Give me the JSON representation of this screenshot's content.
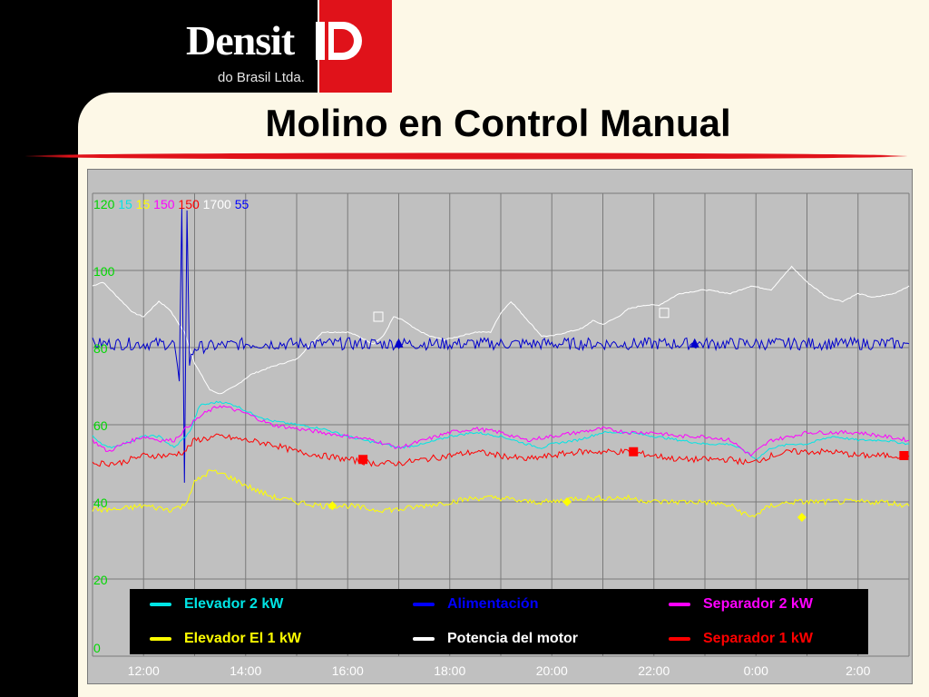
{
  "logo": {
    "wordmark": "Densit",
    "subtitle": "do Brasil Ltda."
  },
  "title": "Molino en Control Manual",
  "colors": {
    "background": "#fdf8e7",
    "accent_red": "#e0121a",
    "plot_bg": "#c0c0c0",
    "grid": "#7a7a7a"
  },
  "chart_data": {
    "type": "line",
    "x_ticks": [
      "12:00",
      "14:00",
      "16:00",
      "18:00",
      "20:00",
      "22:00",
      "0:00",
      "2:00"
    ],
    "y_ticks": [
      0,
      20,
      40,
      60,
      80,
      100
    ],
    "ylim": [
      0,
      120
    ],
    "grid": true,
    "scale_labels": [
      {
        "text": "120",
        "color": "#00d800"
      },
      {
        "text": "15",
        "color": "#00e5e5"
      },
      {
        "text": "15",
        "color": "#ffff00"
      },
      {
        "text": "150",
        "color": "#ff00ff"
      },
      {
        "text": "150",
        "color": "#ff0000"
      },
      {
        "text": "1700",
        "color": "#ffffff"
      },
      {
        "text": "55",
        "color": "#0000ff"
      }
    ],
    "series": [
      {
        "name": "Potencia del motor",
        "color": "#ffffff",
        "points": [
          [
            11.0,
            96
          ],
          [
            11.2,
            97
          ],
          [
            11.5,
            93
          ],
          [
            11.8,
            89
          ],
          [
            12.0,
            88
          ],
          [
            12.3,
            92
          ],
          [
            12.5,
            90
          ],
          [
            12.8,
            84
          ],
          [
            13.0,
            76
          ],
          [
            13.3,
            69
          ],
          [
            13.5,
            68
          ],
          [
            13.8,
            70
          ],
          [
            14.1,
            73
          ],
          [
            14.5,
            75
          ],
          [
            15.0,
            77
          ],
          [
            15.5,
            84
          ],
          [
            16.0,
            84
          ],
          [
            16.2,
            83
          ],
          [
            16.5,
            81
          ],
          [
            16.7,
            83
          ],
          [
            16.9,
            88
          ],
          [
            17.1,
            87
          ],
          [
            17.3,
            85
          ],
          [
            17.6,
            83
          ],
          [
            17.9,
            82
          ],
          [
            18.2,
            83
          ],
          [
            18.5,
            84
          ],
          [
            18.8,
            84
          ],
          [
            19.0,
            89
          ],
          [
            19.2,
            92
          ],
          [
            19.4,
            89
          ],
          [
            19.6,
            86
          ],
          [
            19.8,
            83
          ],
          [
            20.0,
            83
          ],
          [
            20.3,
            84
          ],
          [
            20.6,
            85
          ],
          [
            20.8,
            87
          ],
          [
            21.0,
            86
          ],
          [
            21.3,
            88
          ],
          [
            21.5,
            90
          ],
          [
            21.8,
            91
          ],
          [
            22.1,
            91
          ],
          [
            22.5,
            94
          ],
          [
            23.0,
            95
          ],
          [
            23.5,
            94
          ],
          [
            23.9,
            96
          ],
          [
            24.3,
            95
          ],
          [
            24.7,
            101
          ],
          [
            25.0,
            97
          ],
          [
            25.4,
            93
          ],
          [
            25.7,
            92
          ],
          [
            26.0,
            94
          ],
          [
            26.3,
            93
          ],
          [
            26.7,
            94
          ],
          [
            27.0,
            96
          ]
        ]
      },
      {
        "name": "Alimentación",
        "color": "#0000cc",
        "points": [
          [
            11.0,
            81
          ],
          [
            12.0,
            81
          ],
          [
            12.6,
            81
          ],
          [
            12.7,
            70
          ],
          [
            12.75,
            117
          ],
          [
            12.8,
            46
          ],
          [
            12.85,
            115
          ],
          [
            12.9,
            76
          ],
          [
            13.0,
            80
          ],
          [
            14.0,
            81
          ],
          [
            16.0,
            81
          ],
          [
            18.0,
            81
          ],
          [
            20.0,
            81
          ],
          [
            22.0,
            81
          ],
          [
            24.0,
            81
          ],
          [
            26.0,
            81
          ],
          [
            27.0,
            81
          ]
        ]
      },
      {
        "name": "Elevador 2 kW",
        "color": "#00e5e5",
        "points": [
          [
            11.0,
            57
          ],
          [
            11.3,
            54
          ],
          [
            11.6,
            55
          ],
          [
            12.0,
            57
          ],
          [
            12.3,
            57
          ],
          [
            12.6,
            54
          ],
          [
            12.9,
            58
          ],
          [
            13.1,
            65
          ],
          [
            13.5,
            66
          ],
          [
            13.8,
            65
          ],
          [
            14.1,
            63
          ],
          [
            14.5,
            61
          ],
          [
            15.0,
            60
          ],
          [
            15.5,
            59
          ],
          [
            16.0,
            57
          ],
          [
            16.3,
            56
          ],
          [
            16.7,
            55
          ],
          [
            17.0,
            54
          ],
          [
            17.5,
            55
          ],
          [
            18.0,
            57
          ],
          [
            18.5,
            58
          ],
          [
            19.0,
            57
          ],
          [
            19.5,
            55
          ],
          [
            19.8,
            54
          ],
          [
            20.0,
            55
          ],
          [
            20.5,
            56
          ],
          [
            21.0,
            58
          ],
          [
            21.5,
            58
          ],
          [
            22.0,
            57
          ],
          [
            22.5,
            56
          ],
          [
            23.0,
            55
          ],
          [
            23.5,
            55
          ],
          [
            23.8,
            53
          ],
          [
            24.0,
            51
          ],
          [
            24.3,
            54
          ],
          [
            24.7,
            55
          ],
          [
            25.0,
            55
          ],
          [
            25.5,
            57
          ],
          [
            26.0,
            56
          ],
          [
            26.5,
            56
          ],
          [
            27.0,
            55
          ]
        ]
      },
      {
        "name": "Separador 2 kW",
        "color": "#ff00ff",
        "points": [
          [
            11.0,
            56
          ],
          [
            11.3,
            53
          ],
          [
            11.6,
            55
          ],
          [
            12.0,
            57
          ],
          [
            12.3,
            56
          ],
          [
            12.6,
            56
          ],
          [
            12.9,
            60
          ],
          [
            13.2,
            63
          ],
          [
            13.5,
            65
          ],
          [
            14.0,
            63
          ],
          [
            14.5,
            60
          ],
          [
            15.0,
            59
          ],
          [
            15.5,
            58
          ],
          [
            16.0,
            57
          ],
          [
            16.5,
            56
          ],
          [
            17.0,
            54
          ],
          [
            17.5,
            56
          ],
          [
            18.0,
            58
          ],
          [
            18.5,
            59
          ],
          [
            19.0,
            58
          ],
          [
            19.5,
            56
          ],
          [
            20.0,
            57
          ],
          [
            20.5,
            58
          ],
          [
            21.0,
            59
          ],
          [
            21.5,
            58
          ],
          [
            22.0,
            58
          ],
          [
            22.5,
            57
          ],
          [
            23.0,
            57
          ],
          [
            23.5,
            56
          ],
          [
            23.9,
            52
          ],
          [
            24.3,
            56
          ],
          [
            24.7,
            57
          ],
          [
            25.0,
            58
          ],
          [
            25.5,
            58
          ],
          [
            26.0,
            58
          ],
          [
            26.5,
            57
          ],
          [
            27.0,
            56
          ]
        ]
      },
      {
        "name": "Separador 1 kW",
        "color": "#ff0000",
        "points": [
          [
            11.0,
            50
          ],
          [
            11.5,
            50
          ],
          [
            12.0,
            52
          ],
          [
            12.5,
            52
          ],
          [
            12.8,
            53
          ],
          [
            13.0,
            56
          ],
          [
            13.5,
            57
          ],
          [
            14.0,
            56
          ],
          [
            14.5,
            55
          ],
          [
            15.0,
            53
          ],
          [
            15.5,
            52
          ],
          [
            16.0,
            51
          ],
          [
            16.5,
            50
          ],
          [
            17.0,
            50
          ],
          [
            17.5,
            51
          ],
          [
            18.0,
            52
          ],
          [
            18.5,
            53
          ],
          [
            19.0,
            52
          ],
          [
            19.5,
            51
          ],
          [
            20.0,
            52
          ],
          [
            20.5,
            53
          ],
          [
            21.0,
            53
          ],
          [
            21.5,
            53
          ],
          [
            22.0,
            52
          ],
          [
            22.5,
            51
          ],
          [
            23.0,
            51
          ],
          [
            23.5,
            51
          ],
          [
            23.9,
            50
          ],
          [
            24.3,
            52
          ],
          [
            24.7,
            53
          ],
          [
            25.0,
            53
          ],
          [
            25.5,
            53
          ],
          [
            26.0,
            52
          ],
          [
            26.5,
            52
          ],
          [
            27.0,
            52
          ]
        ]
      },
      {
        "name": "Elevador El 1 kW",
        "color": "#ffff00",
        "points": [
          [
            11.0,
            38
          ],
          [
            11.5,
            38
          ],
          [
            12.0,
            39
          ],
          [
            12.5,
            38
          ],
          [
            12.8,
            39
          ],
          [
            13.0,
            45
          ],
          [
            13.3,
            48
          ],
          [
            13.6,
            47
          ],
          [
            13.9,
            45
          ],
          [
            14.2,
            43
          ],
          [
            14.6,
            41
          ],
          [
            15.0,
            40
          ],
          [
            15.5,
            39
          ],
          [
            16.0,
            39
          ],
          [
            16.5,
            38
          ],
          [
            17.0,
            38
          ],
          [
            17.5,
            39
          ],
          [
            18.0,
            40
          ],
          [
            18.5,
            41
          ],
          [
            19.0,
            41
          ],
          [
            19.5,
            40
          ],
          [
            20.0,
            40
          ],
          [
            20.5,
            41
          ],
          [
            21.0,
            41
          ],
          [
            21.5,
            41
          ],
          [
            22.0,
            40
          ],
          [
            22.5,
            40
          ],
          [
            23.0,
            40
          ],
          [
            23.5,
            39
          ],
          [
            23.9,
            36
          ],
          [
            24.3,
            39
          ],
          [
            24.7,
            40
          ],
          [
            25.0,
            40
          ],
          [
            25.5,
            40
          ],
          [
            26.0,
            40
          ],
          [
            26.5,
            40
          ],
          [
            27.0,
            39
          ]
        ]
      }
    ],
    "markers": [
      {
        "series": "Separador 1 kW",
        "shape": "square",
        "x": 16.3,
        "y": 51
      },
      {
        "series": "Separador 1 kW",
        "shape": "square",
        "x": 21.6,
        "y": 53
      },
      {
        "series": "Separador 1 kW",
        "shape": "square",
        "x": 26.9,
        "y": 52
      },
      {
        "series": "Potencia del motor",
        "shape": "square-open",
        "x": 16.6,
        "y": 88
      },
      {
        "series": "Potencia del motor",
        "shape": "square-open",
        "x": 22.2,
        "y": 89
      },
      {
        "series": "Alimentación",
        "shape": "triangle",
        "x": 17.0,
        "y": 81
      },
      {
        "series": "Alimentación",
        "shape": "triangle",
        "x": 22.8,
        "y": 81
      },
      {
        "series": "Elevador El 1 kW",
        "shape": "diamond",
        "x": 15.7,
        "y": 39
      },
      {
        "series": "Elevador El 1 kW",
        "shape": "diamond",
        "x": 20.3,
        "y": 40
      },
      {
        "series": "Elevador El 1 kW",
        "shape": "diamond",
        "x": 24.9,
        "y": 36
      }
    ],
    "legend": {
      "position": "bottom-inside",
      "items": [
        {
          "label": "Elevador 2 kW",
          "color": "#00e5e5"
        },
        {
          "label": "Alimentación",
          "color": "#0000ff"
        },
        {
          "label": "Separador 2 kW",
          "color": "#ff00ff"
        },
        {
          "label": "Elevador El 1 kW",
          "color": "#ffff00"
        },
        {
          "label": "Potencia del motor",
          "color": "#ffffff"
        },
        {
          "label": "Separador 1 kW",
          "color": "#ff0000"
        }
      ]
    }
  }
}
